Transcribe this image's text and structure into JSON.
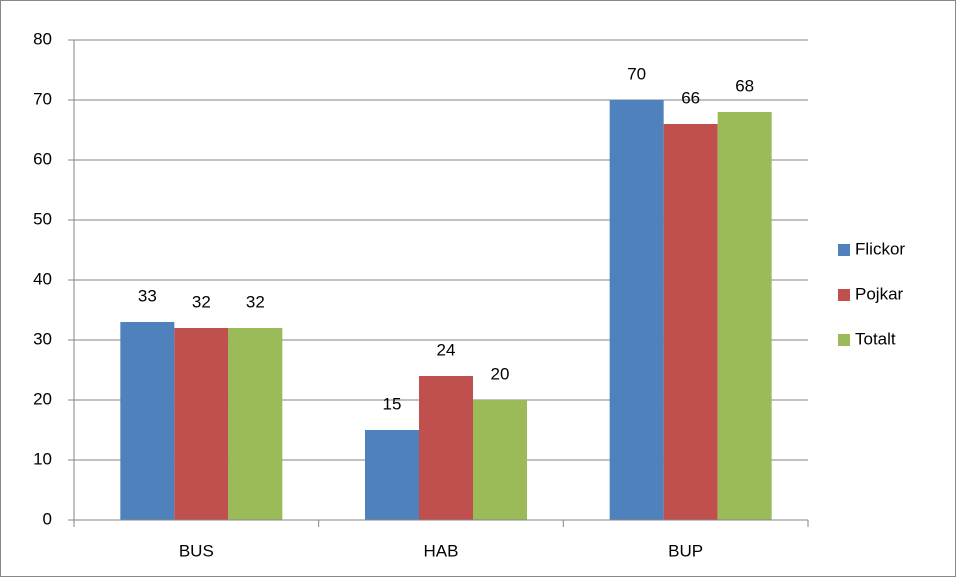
{
  "chart_data": {
    "type": "bar",
    "categories": [
      "BUS",
      "HAB",
      "BUP"
    ],
    "series": [
      {
        "name": "Flickor",
        "color": "#4f81bd",
        "values": [
          33,
          15,
          70
        ]
      },
      {
        "name": "Pojkar",
        "color": "#c0504d",
        "values": [
          32,
          24,
          66
        ]
      },
      {
        "name": "Totalt",
        "color": "#9bbb59",
        "values": [
          32,
          20,
          68
        ]
      }
    ],
    "ylim": [
      0,
      80
    ],
    "yticks": [
      0,
      10,
      20,
      30,
      40,
      50,
      60,
      70,
      80
    ],
    "grid": true,
    "data_labels": true,
    "legend": "right"
  }
}
